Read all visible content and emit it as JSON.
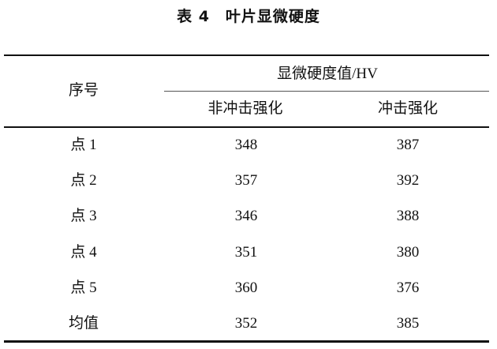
{
  "title": "表 4　叶片显微硬度",
  "table": {
    "header": {
      "index_col": "序号",
      "group": "显微硬度值/HV",
      "sub": [
        "非冲击强化",
        "冲击强化"
      ]
    },
    "rows": [
      {
        "label": "点 1",
        "values": [
          "348",
          "387"
        ]
      },
      {
        "label": "点 2",
        "values": [
          "357",
          "392"
        ]
      },
      {
        "label": "点 3",
        "values": [
          "346",
          "388"
        ]
      },
      {
        "label": "点 4",
        "values": [
          "351",
          "380"
        ]
      },
      {
        "label": "点 5",
        "values": [
          "360",
          "376"
        ]
      },
      {
        "label": "均值",
        "values": [
          "352",
          "385"
        ]
      }
    ]
  }
}
